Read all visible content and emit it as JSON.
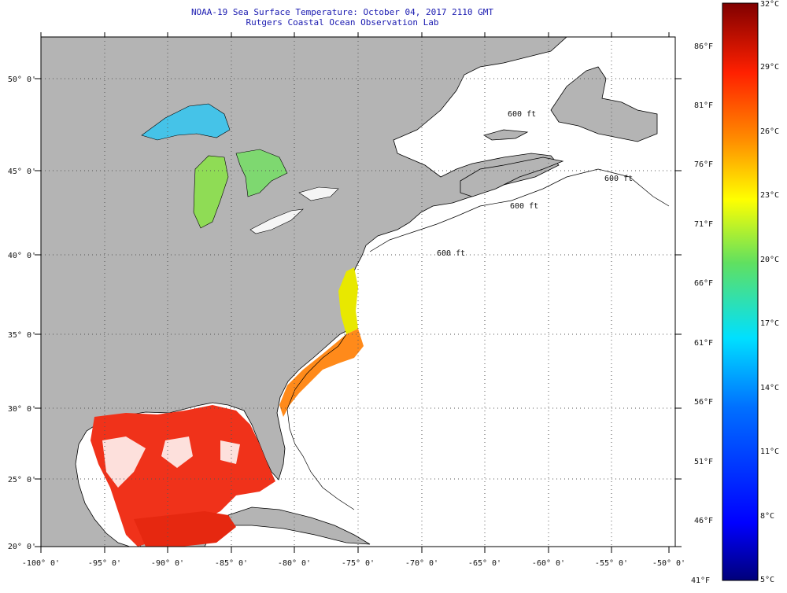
{
  "header": {
    "title_line1": "NOAA-19 Sea Surface Temperature:  October 04, 2017 2110 GMT",
    "title_line2": "Rutgers Coastal Ocean Observation Lab"
  },
  "map": {
    "lon_ticks": [
      "-100° 0'",
      "-95° 0'",
      "-90° 0'",
      "-85° 0'",
      "-80° 0'",
      "-75° 0'",
      "-70° 0'",
      "-65° 0'",
      "-60° 0'",
      "-55° 0'",
      "-50° 0'"
    ],
    "lat_ticks": [
      "50° 0'",
      "45° 0'",
      "40° 0'",
      "35° 0'",
      "30° 0'",
      "25° 0'",
      "20° 0'"
    ],
    "isobath_label": "600 ft",
    "colors": {
      "land": "#b4b4b4",
      "ocean": "#ffffff",
      "grid": "#555555",
      "title": "#1a1ab0"
    }
  },
  "colorbar": {
    "fahrenheit": [
      "86°F",
      "81°F",
      "76°F",
      "71°F",
      "66°F",
      "61°F",
      "56°F",
      "51°F",
      "46°F",
      "41°F"
    ],
    "celsius": [
      "32°C",
      "29°C",
      "26°C",
      "23°C",
      "20°C",
      "17°C",
      "14°C",
      "11°C",
      "8°C",
      "5°C"
    ]
  }
}
